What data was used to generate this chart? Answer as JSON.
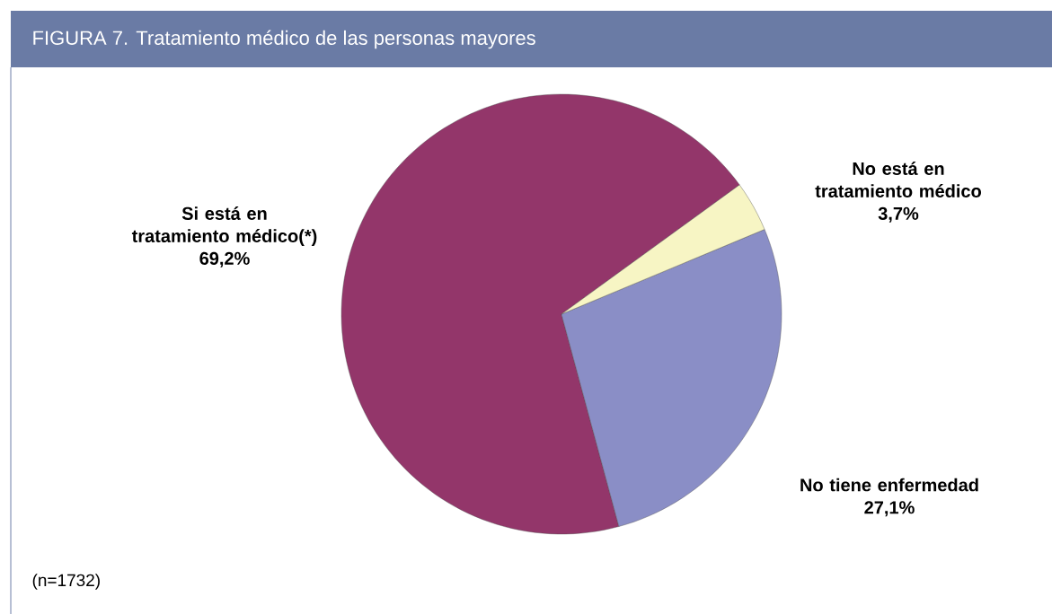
{
  "chart_data": {
    "type": "pie",
    "title": "FIGURA 7. Tratamiento médico de las personas mayores",
    "categories": [
      "Si está en tratamiento médico(*)",
      "No tiene enfermedad",
      "No está en tratamiento médico"
    ],
    "values": [
      69.2,
      27.1,
      3.7
    ],
    "colors": [
      "#93366a",
      "#8a8ec6",
      "#f7f5c4"
    ],
    "value_labels": [
      "69,2%",
      "27,1%",
      "3,7%"
    ],
    "annotations": [
      "(n=1732)"
    ]
  }
}
